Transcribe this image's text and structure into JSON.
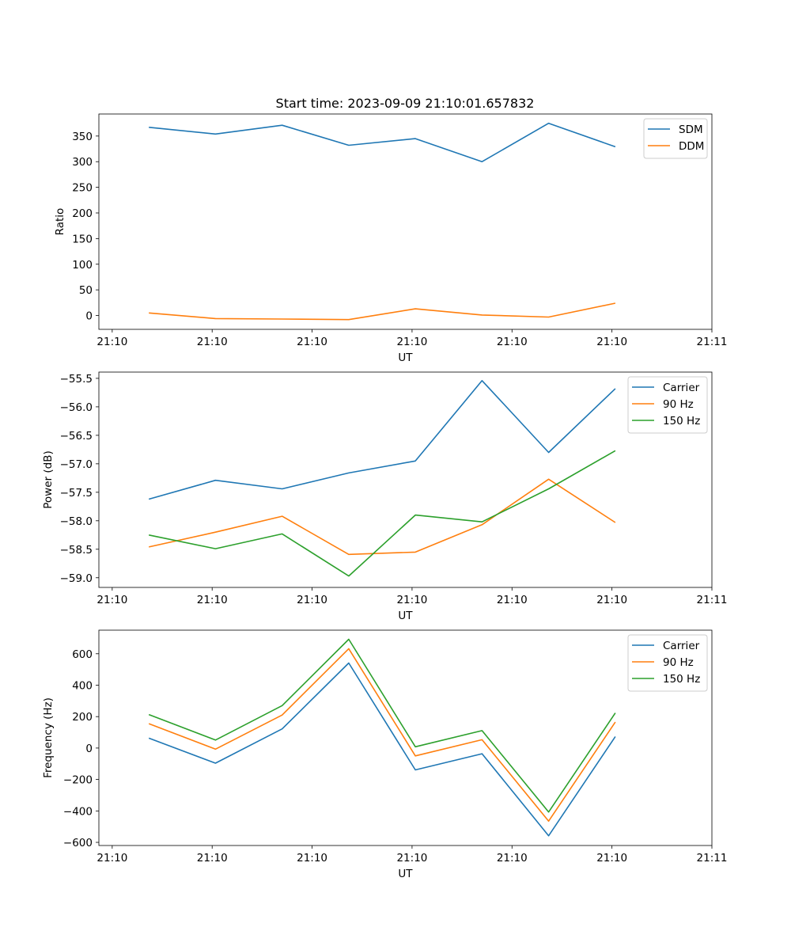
{
  "chart_data": [
    {
      "type": "line",
      "title": "Start time: 2023-09-09 21:10:01.657832",
      "xlabel": "UT",
      "ylabel": "Ratio",
      "x_index": [
        0,
        1,
        2,
        3,
        4,
        5,
        6,
        7
      ],
      "xlim": [
        -0.75,
        8.45
      ],
      "x_ticks": [
        -0.55,
        0.95,
        2.45,
        3.95,
        5.45,
        6.95,
        8.45
      ],
      "x_tick_labels": [
        "21:10",
        "21:10",
        "21:10",
        "21:10",
        "21:10",
        "21:10",
        "21:11"
      ],
      "ylim": [
        -27,
        393
      ],
      "y_ticks": [
        0,
        50,
        100,
        150,
        200,
        250,
        300,
        350
      ],
      "y_tick_labels": [
        "0",
        "50",
        "100",
        "150",
        "200",
        "250",
        "300",
        "350"
      ],
      "legend_position": "top-right",
      "series": [
        {
          "name": "SDM",
          "color": "#1f77b4",
          "values": [
            367,
            354,
            371,
            332,
            345,
            300,
            375,
            329
          ]
        },
        {
          "name": "DDM",
          "color": "#ff7f0e",
          "values": [
            5,
            -6,
            -7,
            -8,
            13,
            1,
            -3,
            24
          ]
        }
      ]
    },
    {
      "type": "line",
      "title": "",
      "xlabel": "UT",
      "ylabel": "Power (dB)",
      "x_index": [
        0,
        1,
        2,
        3,
        4,
        5,
        6,
        7
      ],
      "xlim": [
        -0.75,
        8.45
      ],
      "x_ticks": [
        -0.55,
        0.95,
        2.45,
        3.95,
        5.45,
        6.95,
        8.45
      ],
      "x_tick_labels": [
        "21:10",
        "21:10",
        "21:10",
        "21:10",
        "21:10",
        "21:10",
        "21:11"
      ],
      "ylim": [
        -59.17,
        -55.39
      ],
      "y_ticks": [
        -59.0,
        -58.5,
        -58.0,
        -57.5,
        -57.0,
        -56.5,
        -56.0,
        -55.5
      ],
      "y_tick_labels": [
        "−59.0",
        "−58.5",
        "−58.0",
        "−57.5",
        "−57.0",
        "−56.5",
        "−56.0",
        "−55.5"
      ],
      "legend_position": "top-right",
      "series": [
        {
          "name": "Carrier",
          "color": "#1f77b4",
          "values": [
            -57.62,
            -57.29,
            -57.44,
            -57.16,
            -56.95,
            -55.54,
            -56.8,
            -55.68
          ]
        },
        {
          "name": "90 Hz",
          "color": "#ff7f0e",
          "values": [
            -58.46,
            -58.2,
            -57.92,
            -58.59,
            -58.55,
            -58.07,
            -57.27,
            -58.03
          ]
        },
        {
          "name": "150 Hz",
          "color": "#2ca02c",
          "values": [
            -58.25,
            -58.49,
            -58.23,
            -58.97,
            -57.9,
            -58.02,
            -57.44,
            -56.77
          ]
        }
      ]
    },
    {
      "type": "line",
      "title": "",
      "xlabel": "UT",
      "ylabel": "Frequency (Hz)",
      "x_index": [
        0,
        1,
        2,
        3,
        4,
        5,
        6,
        7
      ],
      "xlim": [
        -0.75,
        8.45
      ],
      "x_ticks": [
        -0.55,
        0.95,
        2.45,
        3.95,
        5.45,
        6.95,
        8.45
      ],
      "x_tick_labels": [
        "21:10",
        "21:10",
        "21:10",
        "21:10",
        "21:10",
        "21:10",
        "21:11"
      ],
      "ylim": [
        -620,
        750
      ],
      "y_ticks": [
        -600,
        -400,
        -200,
        0,
        200,
        400,
        600
      ],
      "y_tick_labels": [
        "−600",
        "−400",
        "−200",
        "0",
        "200",
        "400",
        "600"
      ],
      "legend_position": "top-right",
      "series": [
        {
          "name": "Carrier",
          "color": "#1f77b4",
          "values": [
            63,
            -96,
            122,
            541,
            -139,
            -36,
            -558,
            73
          ]
        },
        {
          "name": "90 Hz",
          "color": "#ff7f0e",
          "values": [
            155,
            -7,
            210,
            632,
            -50,
            53,
            -465,
            165
          ]
        },
        {
          "name": "150 Hz",
          "color": "#2ca02c",
          "values": [
            213,
            51,
            270,
            692,
            8,
            111,
            -407,
            223
          ]
        }
      ]
    }
  ]
}
